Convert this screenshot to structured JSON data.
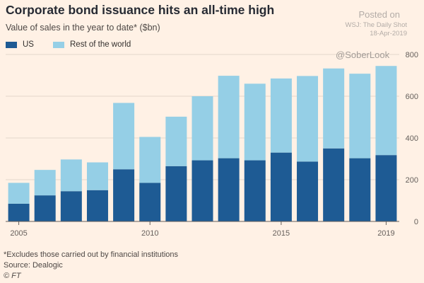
{
  "header": {
    "title": "Corporate bond issuance hits an all-time high",
    "subtitle": "Value of sales in the year to date* ($bn)"
  },
  "stamp": {
    "posted": "Posted on",
    "source": "WSJ: The Daily Shot",
    "date": "18-Apr-2019",
    "handle": "@SoberLook"
  },
  "footer": {
    "footnote": "*Excludes those carried out by financial institutions",
    "source": "Source: Dealogic",
    "credit": "© FT"
  },
  "colors": {
    "us": "#1e5b94",
    "rest": "#95cfe6",
    "grid": "#e3d7cb",
    "axis": "#66605c"
  },
  "chart_data": {
    "type": "bar",
    "stacked": true,
    "categories": [
      "2005",
      "2006",
      "2007",
      "2008",
      "2009",
      "2010",
      "2011",
      "2012",
      "2013",
      "2014",
      "2015",
      "2016",
      "2017",
      "2018",
      "2019"
    ],
    "series": [
      {
        "name": "US",
        "values": [
          85,
          125,
          145,
          150,
          250,
          185,
          265,
          293,
          303,
          293,
          330,
          287,
          350,
          303,
          318
        ]
      },
      {
        "name": "Rest of the world",
        "values": [
          100,
          122,
          152,
          133,
          318,
          220,
          237,
          307,
          395,
          367,
          355,
          410,
          383,
          405,
          427
        ]
      }
    ],
    "x_tick_labels": [
      "2005",
      "2010",
      "2015",
      "2019"
    ],
    "ylim": [
      0,
      800
    ],
    "y_ticks": [
      0,
      200,
      400,
      600,
      800
    ],
    "y_axis_side": "right",
    "grid": true,
    "legend_position": "top-left"
  }
}
